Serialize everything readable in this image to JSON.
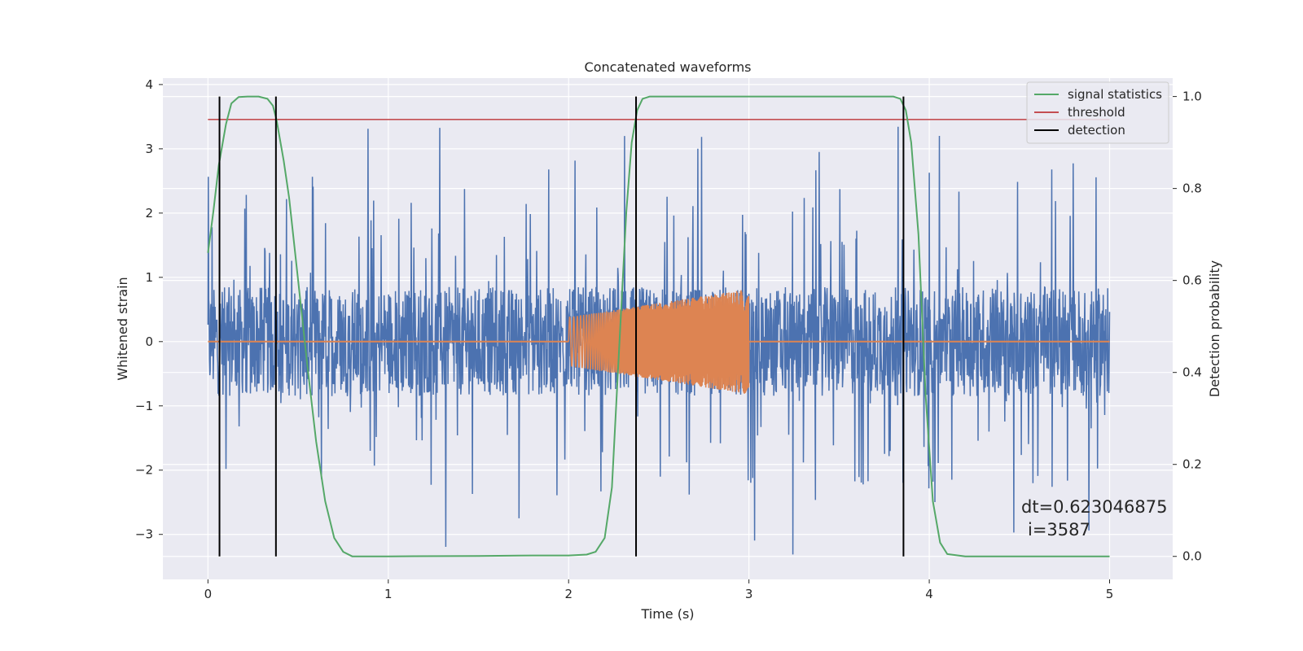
{
  "chart_data": {
    "type": "line",
    "title": "Concatenated waveforms",
    "xlabel": "Time (s)",
    "ylabel": "Whitened strain",
    "ylabel_right": "Detection probability",
    "xlim": [
      -0.25,
      5.35
    ],
    "ylim": [
      -3.7,
      4.1
    ],
    "ylim_right": [
      -0.05,
      1.04
    ],
    "xticks": [
      0,
      1,
      2,
      3,
      4,
      5
    ],
    "yticks": [
      -3,
      -2,
      -1,
      0,
      1,
      2,
      3,
      4
    ],
    "yticks_right": [
      0.0,
      0.2,
      0.4,
      0.6,
      0.8,
      1.0
    ],
    "grid": true,
    "legend_position": "top-right",
    "series": [
      {
        "name": "",
        "axis": "left",
        "kind": "noise",
        "x_range": [
          0,
          5
        ],
        "envelope_low": -3.35,
        "envelope_high": 3.35,
        "core_amplitude": 0.85,
        "color": "#4c72b0"
      },
      {
        "name": "",
        "axis": "left",
        "kind": "chirp",
        "flat_range": [
          0,
          5
        ],
        "chirp_range": [
          2.0,
          3.0
        ],
        "amp_start": 0.38,
        "amp_end": 0.82,
        "color": "#dd8452"
      },
      {
        "name": "signal statistics",
        "axis": "right",
        "color": "#55a868",
        "x": [
          0,
          0.03,
          0.06,
          0.1,
          0.13,
          0.17,
          0.22,
          0.28,
          0.33,
          0.36,
          0.38,
          0.42,
          0.45,
          0.5,
          0.55,
          0.6,
          0.65,
          0.7,
          0.75,
          0.8,
          1.0,
          1.5,
          1.8,
          2.0,
          2.1,
          2.15,
          2.2,
          2.24,
          2.28,
          2.32,
          2.35,
          2.38,
          2.41,
          2.45,
          2.5,
          3.0,
          3.5,
          3.8,
          3.84,
          3.87,
          3.9,
          3.94,
          3.98,
          4.02,
          4.06,
          4.1,
          4.2,
          5.0
        ],
        "y": [
          0.66,
          0.75,
          0.85,
          0.94,
          0.985,
          0.999,
          1.0,
          1.0,
          0.995,
          0.98,
          0.95,
          0.86,
          0.78,
          0.6,
          0.42,
          0.25,
          0.12,
          0.04,
          0.01,
          0.0,
          0.0,
          0.001,
          0.002,
          0.002,
          0.004,
          0.01,
          0.04,
          0.15,
          0.45,
          0.75,
          0.9,
          0.97,
          0.995,
          1.0,
          1.0,
          1.0,
          1.0,
          1.0,
          0.995,
          0.97,
          0.9,
          0.7,
          0.35,
          0.12,
          0.03,
          0.005,
          0.0,
          0.0
        ]
      },
      {
        "name": "threshold",
        "axis": "right",
        "color": "#c44e52",
        "x": [
          0,
          5
        ],
        "y": [
          0.95,
          0.95
        ]
      },
      {
        "name": "detection",
        "axis": "right",
        "color": "#000000",
        "x_positions": [
          0.064,
          0.377,
          2.374,
          3.857
        ],
        "y_range": [
          0,
          1
        ]
      }
    ],
    "annotation": {
      "line1": "dt=0.623046875",
      "line2": "i=3587"
    }
  }
}
